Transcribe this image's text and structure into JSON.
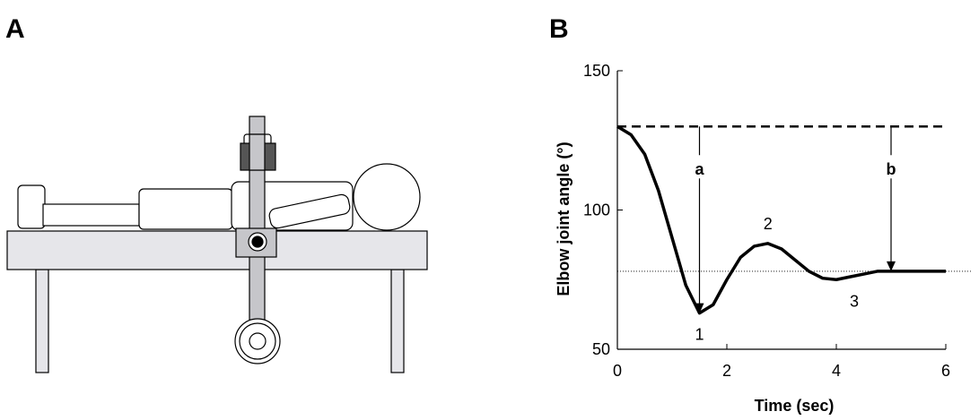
{
  "panel_labels": [
    "A",
    "B"
  ],
  "chart_data": {
    "type": "line",
    "xlabel": "Time (sec)",
    "ylabel": "Elbow joint angle (°)",
    "x": [
      0,
      0.25,
      0.5,
      0.75,
      1.0,
      1.25,
      1.5,
      1.75,
      2.0,
      2.25,
      2.5,
      2.75,
      3.0,
      3.25,
      3.5,
      3.75,
      4.0,
      4.25,
      4.5,
      4.75,
      5.0,
      5.5,
      6.0
    ],
    "series": [
      {
        "color": "#000000",
        "values": [
          130,
          127,
          120,
          107,
          90,
          73,
          63,
          66,
          75,
          83,
          87,
          88,
          86,
          82,
          78,
          75.5,
          75,
          76,
          77,
          78,
          78,
          78,
          78
        ]
      }
    ],
    "xlim": [
      0,
      6
    ],
    "xticks": [
      0,
      2,
      4,
      6
    ],
    "ylim": [
      50,
      150
    ],
    "yticks": [
      50,
      100,
      150
    ],
    "reference_lines": [
      {
        "style": "dashed",
        "y": 130
      },
      {
        "style": "dotted",
        "y": 78
      }
    ],
    "arrows": [
      {
        "label": "a",
        "x": 1.5,
        "from": 130,
        "to": 63
      },
      {
        "label": "b",
        "x": 5,
        "from": 130,
        "to": 78
      }
    ],
    "point_labels": [
      {
        "label": "1",
        "x": 1.5,
        "y": 63,
        "position": "below"
      },
      {
        "label": "2",
        "x": 2.75,
        "y": 88,
        "position": "above"
      },
      {
        "label": "3",
        "x": 4,
        "y": 75,
        "position": "below"
      }
    ]
  }
}
